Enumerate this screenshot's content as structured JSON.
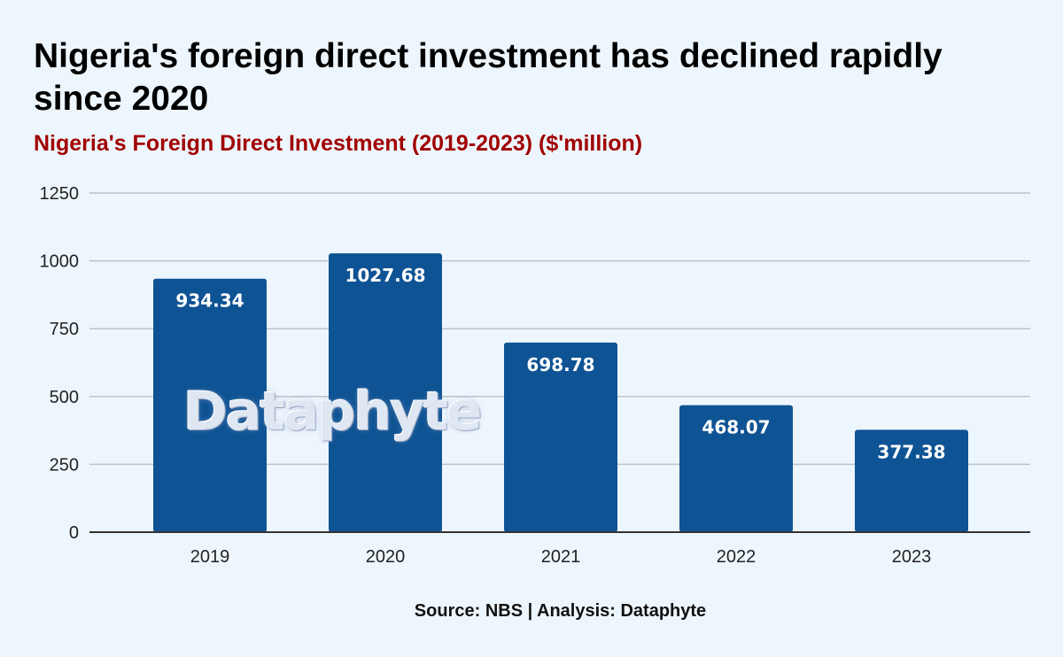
{
  "headline": "Nigeria's foreign direct investment has declined rapidly since 2020",
  "source": "Source: NBS | Analysis: Dataphyte",
  "watermark": "Dataphyte",
  "colors": {
    "background": "#eef6fd",
    "bar": "#0e5394",
    "subtitle": "#a00000",
    "grid": "#b9c3cf"
  },
  "chart_data": {
    "type": "bar",
    "title": "Nigeria's Foreign Direct Investment (2019-2023) ($'million)",
    "xlabel": "",
    "ylabel": "",
    "categories": [
      "2019",
      "2020",
      "2021",
      "2022",
      "2023"
    ],
    "values": [
      934.34,
      1027.68,
      698.78,
      468.07,
      377.38
    ],
    "value_labels": [
      "934.34",
      "1027.68",
      "698.78",
      "468.07",
      "377.38"
    ],
    "ylim": [
      0,
      1250
    ],
    "yticks": [
      0,
      250,
      500,
      750,
      1000,
      1250
    ],
    "grid": true,
    "legend": "none"
  }
}
